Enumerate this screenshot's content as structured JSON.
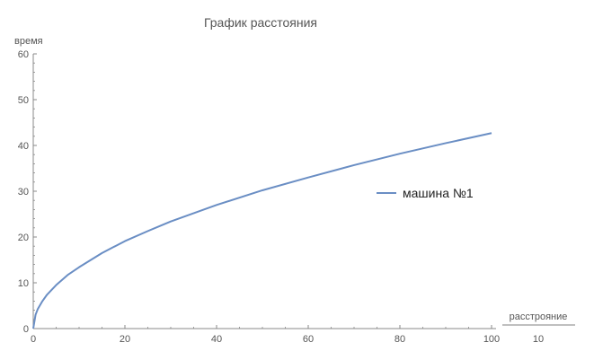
{
  "chart_data": {
    "type": "line",
    "title": "График расстояния",
    "xlabel_num": "расстрояние",
    "xlabel_den": "10",
    "ylabel": "время",
    "xlim": [
      0,
      100
    ],
    "ylim": [
      0,
      60
    ],
    "xticks": [
      0,
      20,
      40,
      60,
      80,
      100
    ],
    "yticks": [
      0,
      10,
      20,
      30,
      40,
      50,
      60
    ],
    "grid": false,
    "legend_position": "right",
    "series": [
      {
        "name": "машина №1",
        "color": "#6a8ec4",
        "x": [
          0,
          0.5,
          1,
          2,
          3,
          5,
          7.5,
          10,
          15,
          20,
          25,
          30,
          40,
          50,
          60,
          70,
          80,
          90,
          100
        ],
        "y": [
          0,
          3.0,
          4.3,
          6.0,
          7.4,
          9.5,
          11.7,
          13.4,
          16.5,
          19.1,
          21.3,
          23.4,
          27.0,
          30.2,
          33.0,
          35.7,
          38.2,
          40.5,
          42.7
        ]
      }
    ]
  }
}
